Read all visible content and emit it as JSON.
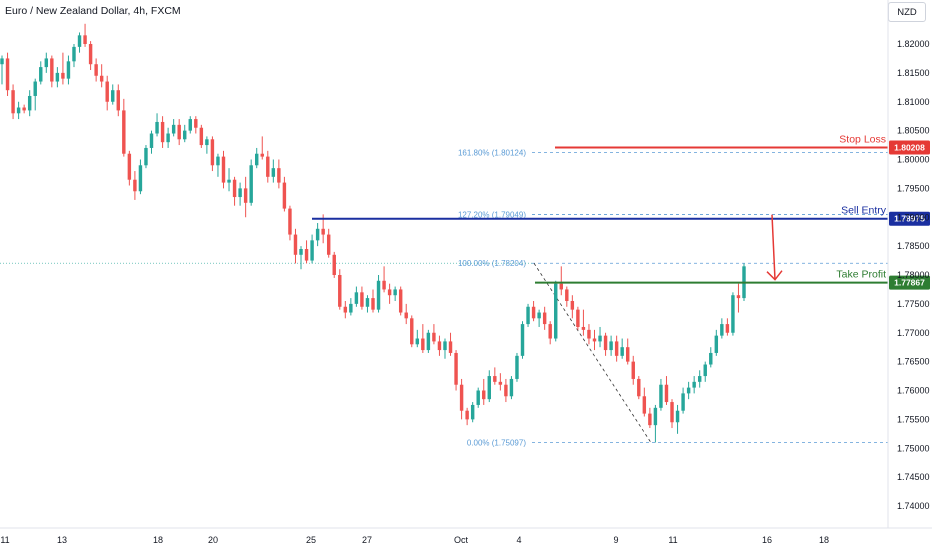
{
  "header": {
    "title": "Euro / New Zealand Dollar, 4h, FXCM",
    "currency": "NZD"
  },
  "colors": {
    "up": "#26a69a",
    "down": "#ef5350",
    "stop": "#e53935",
    "entry": "#1a2fa0",
    "take_profit": "#2e7d32",
    "fib": "#5b9bd5",
    "arrow": "#e53935",
    "text": "#131722"
  },
  "chart_data": {
    "type": "candlestick",
    "symbol": "EURNZD",
    "timeframe": "4h",
    "y_ticks": [
      1.74,
      1.745,
      1.75,
      1.755,
      1.76,
      1.765,
      1.77,
      1.775,
      1.78,
      1.785,
      1.79,
      1.795,
      1.8,
      1.805,
      1.81,
      1.815,
      1.82
    ],
    "x_ticks": [
      "11",
      "13",
      "18",
      "20",
      "25",
      "27",
      "Oct",
      "4",
      "9",
      "11",
      "16",
      "18"
    ],
    "levels": [
      {
        "name": "Stop Loss",
        "price": 1.80208,
        "tag": "1.80208"
      },
      {
        "name": "Sell Entry",
        "price": 1.78975,
        "tag": "1.78975"
      },
      {
        "name": "Take Profit",
        "price": 1.77867,
        "tag": "1.77867"
      }
    ],
    "fibonacci": [
      {
        "ratio": "161.80%",
        "price": 1.80124,
        "label": "161.80% (1.80124)"
      },
      {
        "ratio": "127.20%",
        "price": 1.79049,
        "label": "127.20% (1.79049)"
      },
      {
        "ratio": "100.00%",
        "price": 1.78204,
        "label": "100.00% (1.78204)"
      },
      {
        "ratio": "0.00%",
        "price": 1.75097,
        "label": "0.00% (1.75097)"
      }
    ],
    "candles": [
      [
        1.8165,
        1.818,
        1.813,
        1.8175
      ],
      [
        1.8175,
        1.8185,
        1.811,
        1.812
      ],
      [
        1.812,
        1.813,
        1.807,
        1.808
      ],
      [
        1.808,
        1.81,
        1.807,
        1.809
      ],
      [
        1.809,
        1.8095,
        1.808,
        1.8085
      ],
      [
        1.8085,
        1.812,
        1.8075,
        1.811
      ],
      [
        1.811,
        1.814,
        1.8085,
        1.8135
      ],
      [
        1.8135,
        1.817,
        1.813,
        1.816
      ],
      [
        1.816,
        1.8185,
        1.815,
        1.8175
      ],
      [
        1.8175,
        1.818,
        1.8125,
        1.8135
      ],
      [
        1.8135,
        1.816,
        1.8125,
        1.815
      ],
      [
        1.815,
        1.8185,
        1.813,
        1.814
      ],
      [
        1.814,
        1.818,
        1.813,
        1.817
      ],
      [
        1.817,
        1.82,
        1.816,
        1.8195
      ],
      [
        1.8195,
        1.822,
        1.8185,
        1.8215
      ],
      [
        1.8215,
        1.8235,
        1.8195,
        1.82
      ],
      [
        1.82,
        1.8205,
        1.8155,
        1.8165
      ],
      [
        1.8165,
        1.8175,
        1.8135,
        1.8145
      ],
      [
        1.8145,
        1.8165,
        1.8125,
        1.8135
      ],
      [
        1.8135,
        1.8145,
        1.8085,
        1.81
      ],
      [
        1.81,
        1.813,
        1.8095,
        1.812
      ],
      [
        1.812,
        1.813,
        1.8075,
        1.8085
      ],
      [
        1.8085,
        1.8105,
        1.8005,
        1.801
      ],
      [
        1.801,
        1.8015,
        1.7955,
        1.7965
      ],
      [
        1.7965,
        1.798,
        1.793,
        1.7945
      ],
      [
        1.7945,
        1.8,
        1.794,
        1.799
      ],
      [
        1.799,
        1.8025,
        1.7985,
        1.802
      ],
      [
        1.802,
        1.805,
        1.801,
        1.8045
      ],
      [
        1.8045,
        1.808,
        1.804,
        1.8065
      ],
      [
        1.8065,
        1.8075,
        1.802,
        1.803
      ],
      [
        1.803,
        1.8055,
        1.802,
        1.8045
      ],
      [
        1.8045,
        1.807,
        1.804,
        1.806
      ],
      [
        1.806,
        1.807,
        1.8025,
        1.8035
      ],
      [
        1.8035,
        1.806,
        1.803,
        1.805
      ],
      [
        1.805,
        1.8075,
        1.8045,
        1.807
      ],
      [
        1.807,
        1.8075,
        1.8045,
        1.8055
      ],
      [
        1.8055,
        1.806,
        1.802,
        1.8025
      ],
      [
        1.8025,
        1.804,
        1.801,
        1.8035
      ],
      [
        1.8035,
        1.804,
        1.798,
        1.799
      ],
      [
        1.799,
        1.801,
        1.797,
        1.8005
      ],
      [
        1.8005,
        1.8015,
        1.795,
        1.796
      ],
      [
        1.796,
        1.7985,
        1.7945,
        1.7965
      ],
      [
        1.7965,
        1.797,
        1.792,
        1.7935
      ],
      [
        1.7935,
        1.796,
        1.792,
        1.795
      ],
      [
        1.795,
        1.797,
        1.79,
        1.7925
      ],
      [
        1.7925,
        1.8,
        1.792,
        1.799
      ],
      [
        1.799,
        1.802,
        1.7985,
        1.801
      ],
      [
        1.801,
        1.804,
        1.8,
        1.8005
      ],
      [
        1.8005,
        1.8015,
        1.796,
        1.797
      ],
      [
        1.797,
        1.8,
        1.796,
        1.7985
      ],
      [
        1.7985,
        1.8,
        1.795,
        1.796
      ],
      [
        1.796,
        1.797,
        1.791,
        1.7915
      ],
      [
        1.7915,
        1.792,
        1.786,
        1.787
      ],
      [
        1.787,
        1.788,
        1.782,
        1.7835
      ],
      [
        1.7835,
        1.785,
        1.781,
        1.7845
      ],
      [
        1.7845,
        1.786,
        1.782,
        1.7825
      ],
      [
        1.7825,
        1.787,
        1.782,
        1.786
      ],
      [
        1.786,
        1.789,
        1.785,
        1.788
      ],
      [
        1.788,
        1.7905,
        1.7855,
        1.787
      ],
      [
        1.787,
        1.788,
        1.783,
        1.7835
      ],
      [
        1.7835,
        1.784,
        1.7795,
        1.78
      ],
      [
        1.78,
        1.781,
        1.774,
        1.7745
      ],
      [
        1.7745,
        1.7755,
        1.7725,
        1.7735
      ],
      [
        1.7735,
        1.776,
        1.773,
        1.775
      ],
      [
        1.775,
        1.778,
        1.7745,
        1.777
      ],
      [
        1.777,
        1.778,
        1.774,
        1.7745
      ],
      [
        1.7745,
        1.7765,
        1.7735,
        1.776
      ],
      [
        1.776,
        1.7775,
        1.7735,
        1.774
      ],
      [
        1.774,
        1.78,
        1.7735,
        1.779
      ],
      [
        1.779,
        1.7815,
        1.777,
        1.7775
      ],
      [
        1.7775,
        1.7785,
        1.775,
        1.7765
      ],
      [
        1.7765,
        1.778,
        1.7755,
        1.7775
      ],
      [
        1.7775,
        1.778,
        1.773,
        1.7735
      ],
      [
        1.7735,
        1.775,
        1.7715,
        1.7725
      ],
      [
        1.7725,
        1.773,
        1.7675,
        1.768
      ],
      [
        1.768,
        1.7705,
        1.7675,
        1.769
      ],
      [
        1.769,
        1.7715,
        1.7665,
        1.767
      ],
      [
        1.767,
        1.7705,
        1.7665,
        1.77
      ],
      [
        1.77,
        1.7715,
        1.768,
        1.7685
      ],
      [
        1.7685,
        1.7695,
        1.766,
        1.767
      ],
      [
        1.767,
        1.769,
        1.7655,
        1.7685
      ],
      [
        1.7685,
        1.77,
        1.766,
        1.7665
      ],
      [
        1.7665,
        1.767,
        1.76,
        1.761
      ],
      [
        1.761,
        1.762,
        1.755,
        1.7565
      ],
      [
        1.7565,
        1.757,
        1.754,
        1.755
      ],
      [
        1.755,
        1.758,
        1.7545,
        1.7575
      ],
      [
        1.7575,
        1.7605,
        1.757,
        1.76
      ],
      [
        1.76,
        1.762,
        1.7575,
        1.7585
      ],
      [
        1.7585,
        1.7635,
        1.758,
        1.7625
      ],
      [
        1.7625,
        1.764,
        1.761,
        1.7615
      ],
      [
        1.7615,
        1.763,
        1.76,
        1.761
      ],
      [
        1.761,
        1.762,
        1.758,
        1.759
      ],
      [
        1.759,
        1.7625,
        1.7585,
        1.762
      ],
      [
        1.762,
        1.7665,
        1.7615,
        1.766
      ],
      [
        1.766,
        1.772,
        1.7655,
        1.7715
      ],
      [
        1.7715,
        1.775,
        1.771,
        1.7745
      ],
      [
        1.7745,
        1.7755,
        1.772,
        1.7725
      ],
      [
        1.7725,
        1.774,
        1.771,
        1.7735
      ],
      [
        1.7735,
        1.7745,
        1.7705,
        1.7715
      ],
      [
        1.7715,
        1.772,
        1.768,
        1.769
      ],
      [
        1.769,
        1.779,
        1.7685,
        1.7785
      ],
      [
        1.7785,
        1.7815,
        1.7765,
        1.7775
      ],
      [
        1.7775,
        1.778,
        1.7745,
        1.7755
      ],
      [
        1.7755,
        1.7765,
        1.7725,
        1.774
      ],
      [
        1.774,
        1.7745,
        1.7705,
        1.771
      ],
      [
        1.771,
        1.774,
        1.7695,
        1.7705
      ],
      [
        1.7705,
        1.7715,
        1.768,
        1.769
      ],
      [
        1.769,
        1.7705,
        1.767,
        1.7685
      ],
      [
        1.7685,
        1.771,
        1.7675,
        1.7695
      ],
      [
        1.7695,
        1.77,
        1.766,
        1.767
      ],
      [
        1.767,
        1.7695,
        1.766,
        1.7685
      ],
      [
        1.7685,
        1.7695,
        1.765,
        1.766
      ],
      [
        1.766,
        1.769,
        1.7655,
        1.7675
      ],
      [
        1.7675,
        1.769,
        1.7645,
        1.765
      ],
      [
        1.765,
        1.766,
        1.761,
        1.762
      ],
      [
        1.762,
        1.7625,
        1.7585,
        1.759
      ],
      [
        1.759,
        1.7605,
        1.7555,
        1.756
      ],
      [
        1.756,
        1.757,
        1.7535,
        1.754
      ],
      [
        1.754,
        1.7575,
        1.751,
        1.757
      ],
      [
        1.757,
        1.762,
        1.7565,
        1.761
      ],
      [
        1.761,
        1.7625,
        1.7575,
        1.758
      ],
      [
        1.758,
        1.7585,
        1.7535,
        1.7545
      ],
      [
        1.7545,
        1.7575,
        1.7525,
        1.7565
      ],
      [
        1.7565,
        1.7605,
        1.756,
        1.7595
      ],
      [
        1.7595,
        1.7615,
        1.7585,
        1.7605
      ],
      [
        1.7605,
        1.7625,
        1.7595,
        1.7615
      ],
      [
        1.7615,
        1.7635,
        1.7605,
        1.7625
      ],
      [
        1.7625,
        1.765,
        1.7615,
        1.7645
      ],
      [
        1.7645,
        1.7675,
        1.764,
        1.7665
      ],
      [
        1.7665,
        1.7705,
        1.766,
        1.7695
      ],
      [
        1.7695,
        1.7725,
        1.769,
        1.7715
      ],
      [
        1.7715,
        1.7725,
        1.7695,
        1.77
      ],
      [
        1.77,
        1.777,
        1.7695,
        1.7765
      ],
      [
        1.7765,
        1.7785,
        1.7735,
        1.776
      ],
      [
        1.776,
        1.782,
        1.7755,
        1.7815
      ]
    ]
  }
}
